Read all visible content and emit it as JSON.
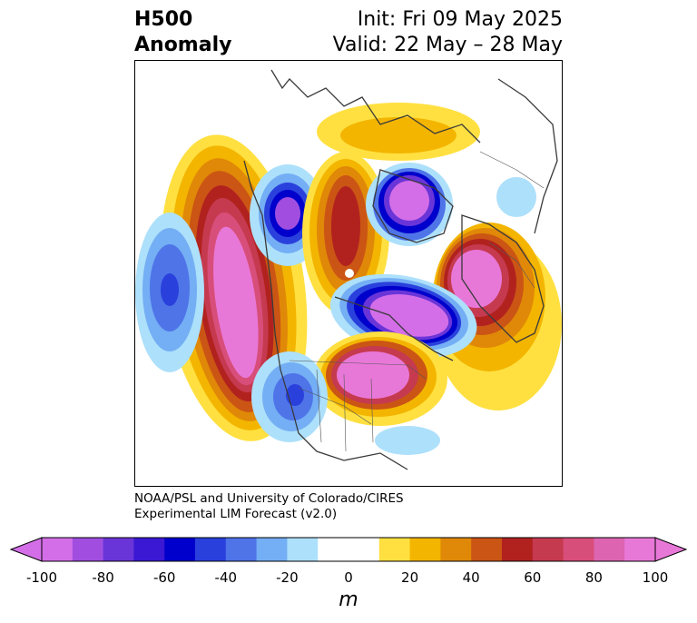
{
  "header": {
    "title_line1": "H500",
    "title_line2": "Anomaly",
    "init_text": "Init: Fri 09 May 2025",
    "valid_text": "Valid: 22 May – 28 May"
  },
  "credit": {
    "line1": "NOAA/PSL and University of Colorado/CIRES",
    "line2": "Experimental LIM Forecast (v2.0)"
  },
  "colorbar": {
    "unit": "m",
    "ticks": [
      "-100",
      "-80",
      "-60",
      "-40",
      "-20",
      "0",
      "20",
      "40",
      "60",
      "80",
      "100"
    ],
    "colors": [
      "#d46ee8",
      "#a14ee0",
      "#6a35d8",
      "#3b18d4",
      "#0000cc",
      "#2a40dc",
      "#4e74e8",
      "#74aef4",
      "#ade0fb",
      "#ffffff",
      "#ffffff",
      "#ffe040",
      "#f3b500",
      "#e08808",
      "#cb5514",
      "#b1221f",
      "#c63a50",
      "#d84e7a",
      "#dc64b0",
      "#e878d8"
    ],
    "extend_low": "#d46ee8",
    "extend_high": "#e878d8"
  },
  "map": {
    "anomalies": [
      {
        "name": "pacific-positive",
        "sign": "positive",
        "peak": "100"
      },
      {
        "name": "north-pacific-negative",
        "sign": "negative",
        "peak": "-60"
      },
      {
        "name": "alaska-negative",
        "sign": "negative",
        "peak": "-100"
      },
      {
        "name": "arctic-canada-positive",
        "sign": "positive",
        "peak": "60"
      },
      {
        "name": "siberia-negative",
        "sign": "negative",
        "peak": "-100"
      },
      {
        "name": "europe-positive",
        "sign": "positive",
        "peak": "100"
      },
      {
        "name": "greenland-negative",
        "sign": "negative",
        "peak": "-100"
      },
      {
        "name": "atlantic-positive",
        "sign": "positive",
        "peak": "100"
      },
      {
        "name": "us-west-negative",
        "sign": "negative",
        "peak": "-60"
      },
      {
        "name": "se-us-negative",
        "sign": "negative",
        "peak": "-20"
      }
    ]
  }
}
